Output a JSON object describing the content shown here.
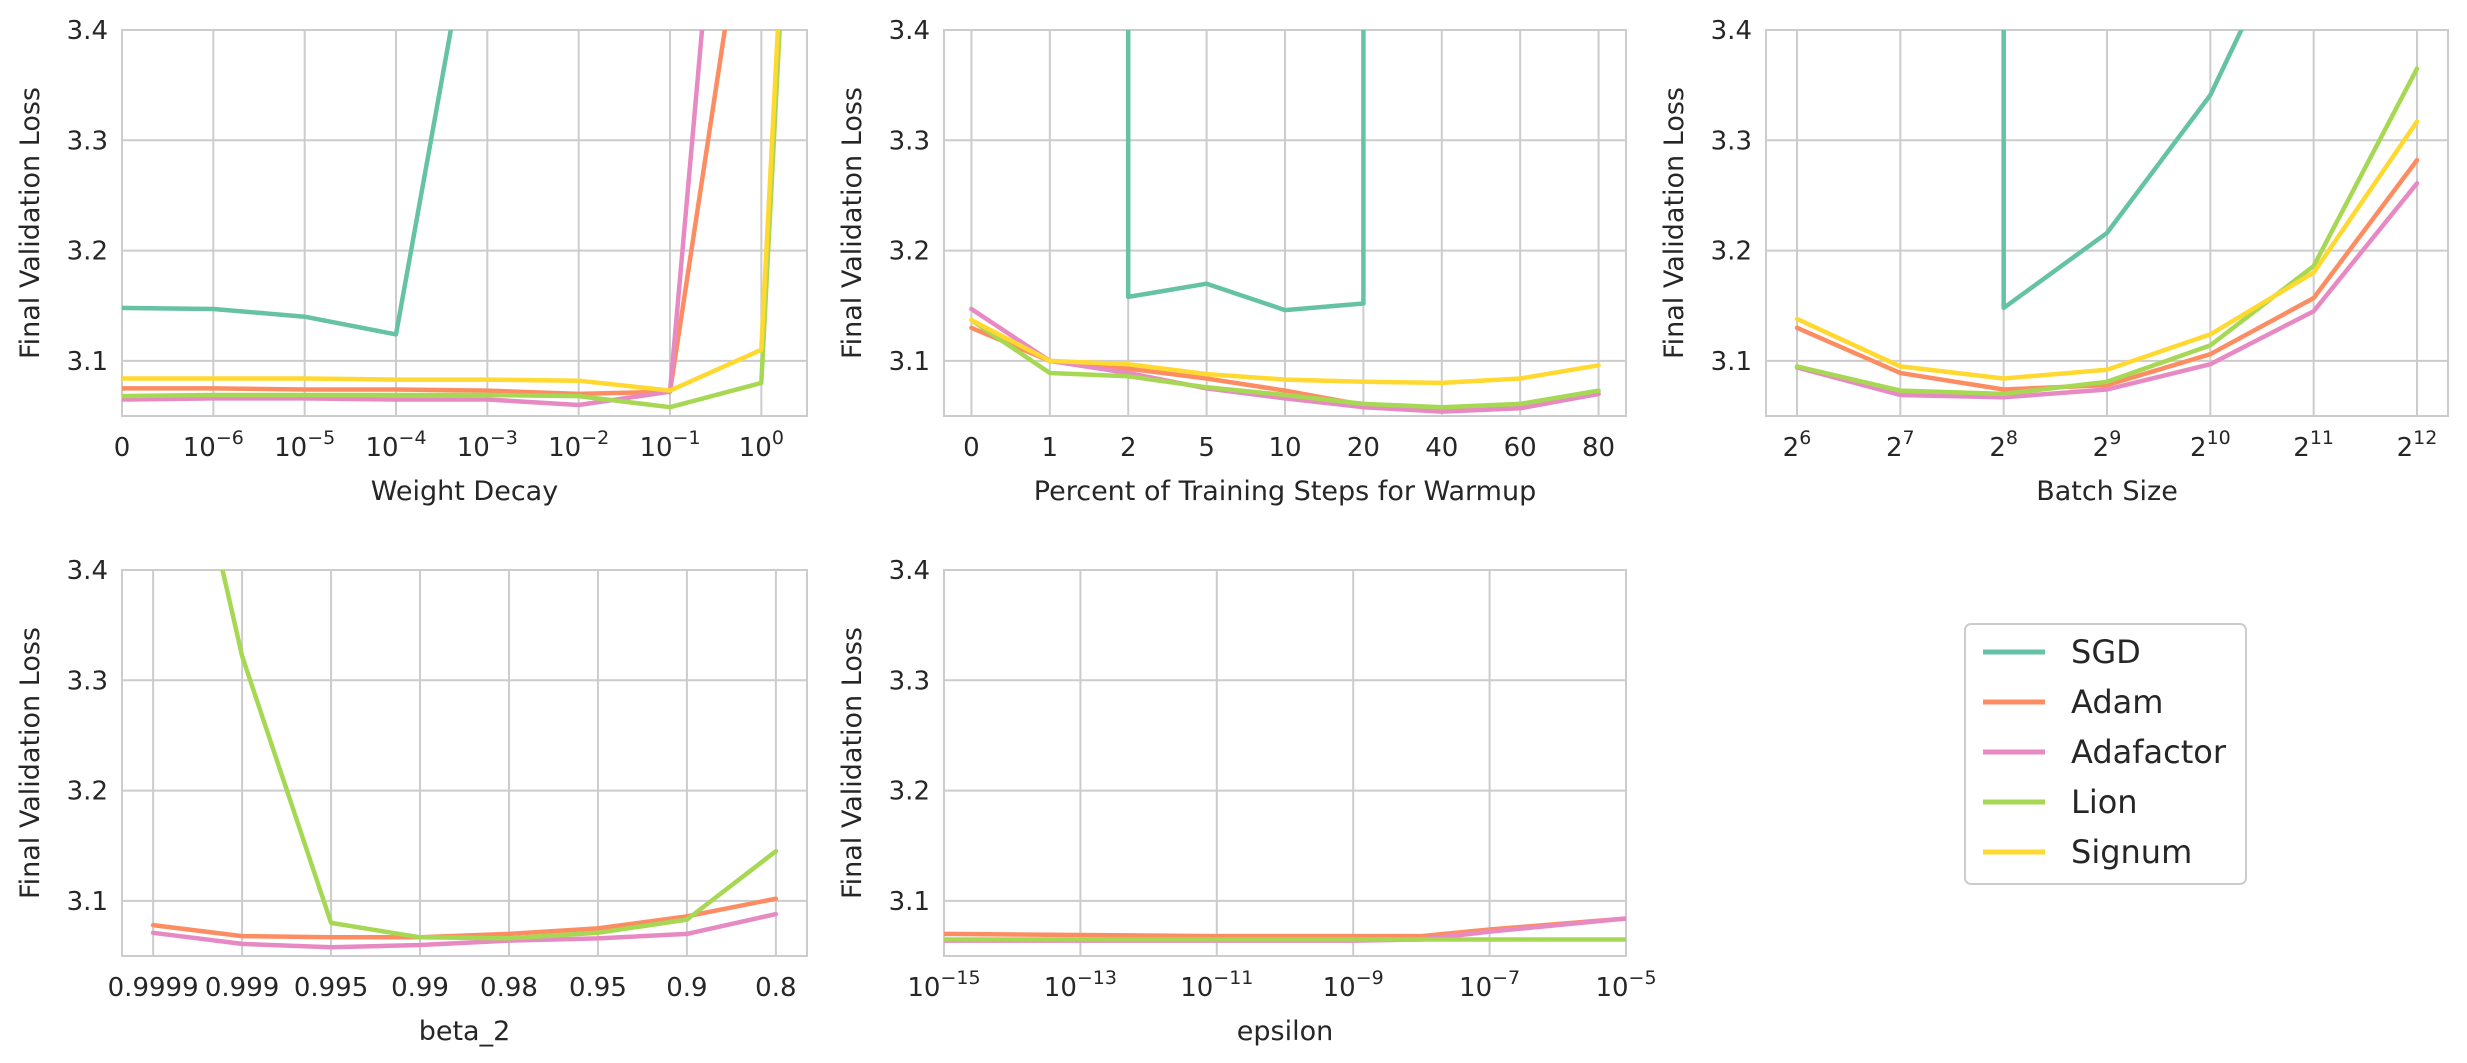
{
  "series_colors": {
    "SGD": "#66c2a5",
    "Adam": "#fc8d62",
    "Adafactor": "#e78ac3",
    "Lion": "#a6d854",
    "Signum": "#ffd92f"
  },
  "legend": {
    "entries": [
      "SGD",
      "Adam",
      "Adafactor",
      "Lion",
      "Signum"
    ]
  },
  "chart_data": [
    {
      "type": "line",
      "id": "weight-decay",
      "xlabel": "Weight Decay",
      "ylabel": "Final Validation Loss",
      "ylim": [
        3.05,
        3.4
      ],
      "yticks": [
        "3.1",
        "3.2",
        "3.3",
        "3.4"
      ],
      "ytick_values": [
        3.1,
        3.2,
        3.3,
        3.4
      ],
      "categories": [
        {
          "base": "0",
          "exp": ""
        },
        {
          "base": "10",
          "exp": "−6"
        },
        {
          "base": "10",
          "exp": "−5"
        },
        {
          "base": "10",
          "exp": "−4"
        },
        {
          "base": "10",
          "exp": "−3"
        },
        {
          "base": "10",
          "exp": "−2"
        },
        {
          "base": "10",
          "exp": "−1"
        },
        {
          "base": "10",
          "exp": "0"
        }
      ],
      "xrange": [
        0,
        7.5
      ],
      "series": [
        {
          "name": "SGD",
          "x": [
            0,
            1,
            2,
            3,
            3.6
          ],
          "values": [
            3.148,
            3.147,
            3.14,
            3.124,
            3.4
          ]
        },
        {
          "name": "Adam",
          "x": [
            0,
            1,
            2,
            3,
            4,
            5,
            6,
            6.6
          ],
          "values": [
            3.075,
            3.075,
            3.074,
            3.074,
            3.073,
            3.07,
            3.072,
            3.4
          ]
        },
        {
          "name": "Adafactor",
          "x": [
            0,
            1,
            2,
            3,
            4,
            5,
            6,
            6.35
          ],
          "values": [
            3.065,
            3.066,
            3.066,
            3.065,
            3.065,
            3.06,
            3.072,
            3.4
          ]
        },
        {
          "name": "Lion",
          "x": [
            0,
            1,
            2,
            3,
            4,
            5,
            6,
            7,
            7.2
          ],
          "values": [
            3.068,
            3.069,
            3.069,
            3.069,
            3.069,
            3.068,
            3.058,
            3.08,
            3.4
          ]
        },
        {
          "name": "Signum",
          "x": [
            0,
            1,
            2,
            3,
            4,
            5,
            6,
            7,
            7.18
          ],
          "values": [
            3.084,
            3.084,
            3.084,
            3.083,
            3.083,
            3.082,
            3.073,
            3.11,
            3.4
          ]
        }
      ]
    },
    {
      "type": "line",
      "id": "warmup",
      "xlabel": "Percent of Training Steps for Warmup",
      "ylabel": "Final Validation Loss",
      "ylim": [
        3.05,
        3.4
      ],
      "yticks": [
        "3.1",
        "3.2",
        "3.3",
        "3.4"
      ],
      "ytick_values": [
        3.1,
        3.2,
        3.3,
        3.4
      ],
      "categories": [
        {
          "base": "0",
          "exp": ""
        },
        {
          "base": "1",
          "exp": ""
        },
        {
          "base": "2",
          "exp": ""
        },
        {
          "base": "5",
          "exp": ""
        },
        {
          "base": "10",
          "exp": ""
        },
        {
          "base": "20",
          "exp": ""
        },
        {
          "base": "40",
          "exp": ""
        },
        {
          "base": "60",
          "exp": ""
        },
        {
          "base": "80",
          "exp": ""
        }
      ],
      "xrange": [
        -0.35,
        8.35
      ],
      "series": [
        {
          "name": "SGD",
          "x": [
            2,
            2,
            3,
            4,
            5,
            5
          ],
          "values": [
            3.4,
            3.158,
            3.17,
            3.146,
            3.152,
            3.4
          ]
        },
        {
          "name": "Adam",
          "x": [
            0,
            1,
            2,
            3,
            4,
            5,
            6,
            7,
            8
          ],
          "values": [
            3.13,
            3.1,
            3.093,
            3.084,
            3.073,
            3.06,
            3.055,
            3.058,
            3.07
          ]
        },
        {
          "name": "Adafactor",
          "x": [
            0,
            1,
            2,
            3,
            4,
            5,
            6,
            7,
            8
          ],
          "values": [
            3.147,
            3.1,
            3.089,
            3.075,
            3.066,
            3.058,
            3.054,
            3.057,
            3.07
          ]
        },
        {
          "name": "Lion",
          "x": [
            0,
            1,
            2,
            3,
            4,
            5,
            6,
            7,
            8
          ],
          "values": [
            3.137,
            3.089,
            3.086,
            3.076,
            3.069,
            3.061,
            3.058,
            3.061,
            3.073
          ]
        },
        {
          "name": "Signum",
          "x": [
            0,
            1,
            2,
            3,
            4,
            5,
            6,
            7,
            8
          ],
          "values": [
            3.137,
            3.1,
            3.097,
            3.088,
            3.083,
            3.081,
            3.08,
            3.084,
            3.096
          ]
        }
      ]
    },
    {
      "type": "line",
      "id": "batch-size",
      "xlabel": "Batch Size",
      "ylabel": "Final Validation Loss",
      "ylim": [
        3.05,
        3.4
      ],
      "yticks": [
        "3.1",
        "3.2",
        "3.3",
        "3.4"
      ],
      "ytick_values": [
        3.1,
        3.2,
        3.3,
        3.4
      ],
      "categories": [
        {
          "base": "2",
          "exp": "6"
        },
        {
          "base": "2",
          "exp": "7"
        },
        {
          "base": "2",
          "exp": "8"
        },
        {
          "base": "2",
          "exp": "9"
        },
        {
          "base": "2",
          "exp": "10"
        },
        {
          "base": "2",
          "exp": "11"
        },
        {
          "base": "2",
          "exp": "12"
        }
      ],
      "xrange": [
        -0.3,
        6.3
      ],
      "series": [
        {
          "name": "SGD",
          "x": [
            2,
            2,
            3,
            4,
            4.3
          ],
          "values": [
            3.4,
            3.148,
            3.216,
            3.341,
            3.4
          ]
        },
        {
          "name": "Adam",
          "x": [
            0,
            1,
            2,
            3,
            4,
            5,
            6
          ],
          "values": [
            3.13,
            3.089,
            3.074,
            3.078,
            3.106,
            3.157,
            3.282
          ]
        },
        {
          "name": "Adafactor",
          "x": [
            0,
            1,
            2,
            3,
            4,
            5,
            6
          ],
          "values": [
            3.094,
            3.069,
            3.067,
            3.074,
            3.097,
            3.145,
            3.261
          ]
        },
        {
          "name": "Lion",
          "x": [
            0,
            1,
            2,
            3,
            4,
            5,
            6
          ],
          "values": [
            3.095,
            3.073,
            3.07,
            3.081,
            3.114,
            3.186,
            3.365
          ]
        },
        {
          "name": "Signum",
          "x": [
            0,
            1,
            2,
            3,
            4,
            5,
            6
          ],
          "values": [
            3.138,
            3.095,
            3.084,
            3.092,
            3.124,
            3.18,
            3.317
          ]
        }
      ]
    },
    {
      "type": "line",
      "id": "beta2",
      "xlabel": "beta_2",
      "ylabel": "Final Validation Loss",
      "ylim": [
        3.05,
        3.4
      ],
      "yticks": [
        "3.1",
        "3.2",
        "3.3",
        "3.4"
      ],
      "ytick_values": [
        3.1,
        3.2,
        3.3,
        3.4
      ],
      "categories": [
        {
          "base": "0.9999",
          "exp": ""
        },
        {
          "base": "0.999",
          "exp": ""
        },
        {
          "base": "0.995",
          "exp": ""
        },
        {
          "base": "0.99",
          "exp": ""
        },
        {
          "base": "0.98",
          "exp": ""
        },
        {
          "base": "0.95",
          "exp": ""
        },
        {
          "base": "0.9",
          "exp": ""
        },
        {
          "base": "0.8",
          "exp": ""
        }
      ],
      "xrange": [
        -0.35,
        7.35
      ],
      "series": [
        {
          "name": "Adam",
          "x": [
            0,
            1,
            2,
            3,
            4,
            5,
            6,
            7
          ],
          "values": [
            3.078,
            3.068,
            3.067,
            3.067,
            3.07,
            3.075,
            3.086,
            3.102
          ]
        },
        {
          "name": "Adafactor",
          "x": [
            0,
            1,
            2,
            3,
            4,
            5,
            6,
            7
          ],
          "values": [
            3.071,
            3.061,
            3.058,
            3.06,
            3.064,
            3.066,
            3.07,
            3.088
          ]
        },
        {
          "name": "Lion",
          "x": [
            0.78,
            1,
            2,
            3,
            4,
            5,
            6,
            7
          ],
          "values": [
            3.4,
            3.322,
            3.08,
            3.067,
            3.066,
            3.071,
            3.083,
            3.145
          ]
        }
      ]
    },
    {
      "type": "line",
      "id": "epsilon",
      "xlabel": "epsilon",
      "ylabel": "Final Validation Loss",
      "ylim": [
        3.05,
        3.4
      ],
      "yticks": [
        "3.1",
        "3.2",
        "3.3",
        "3.4"
      ],
      "ytick_values": [
        3.1,
        3.2,
        3.3,
        3.4
      ],
      "categories": [
        {
          "base": "10",
          "exp": "−15"
        },
        {
          "base": "10",
          "exp": "−13"
        },
        {
          "base": "10",
          "exp": "−11"
        },
        {
          "base": "10",
          "exp": "−9"
        },
        {
          "base": "10",
          "exp": "−7"
        },
        {
          "base": "10",
          "exp": "−5"
        }
      ],
      "xrange": [
        0,
        5
      ],
      "series": [
        {
          "name": "Adam",
          "x": [
            0,
            1,
            2,
            3,
            3.5,
            4,
            5
          ],
          "values": [
            3.07,
            3.069,
            3.068,
            3.068,
            3.068,
            3.074,
            3.084
          ]
        },
        {
          "name": "Adafactor",
          "x": [
            0,
            1,
            2,
            3,
            3.5,
            4,
            5
          ],
          "values": [
            3.064,
            3.064,
            3.064,
            3.064,
            3.065,
            3.072,
            3.084
          ]
        },
        {
          "name": "Lion",
          "x": [
            0,
            1,
            2,
            3,
            4,
            5
          ],
          "values": [
            3.065,
            3.065,
            3.065,
            3.065,
            3.065,
            3.065
          ]
        }
      ]
    }
  ]
}
